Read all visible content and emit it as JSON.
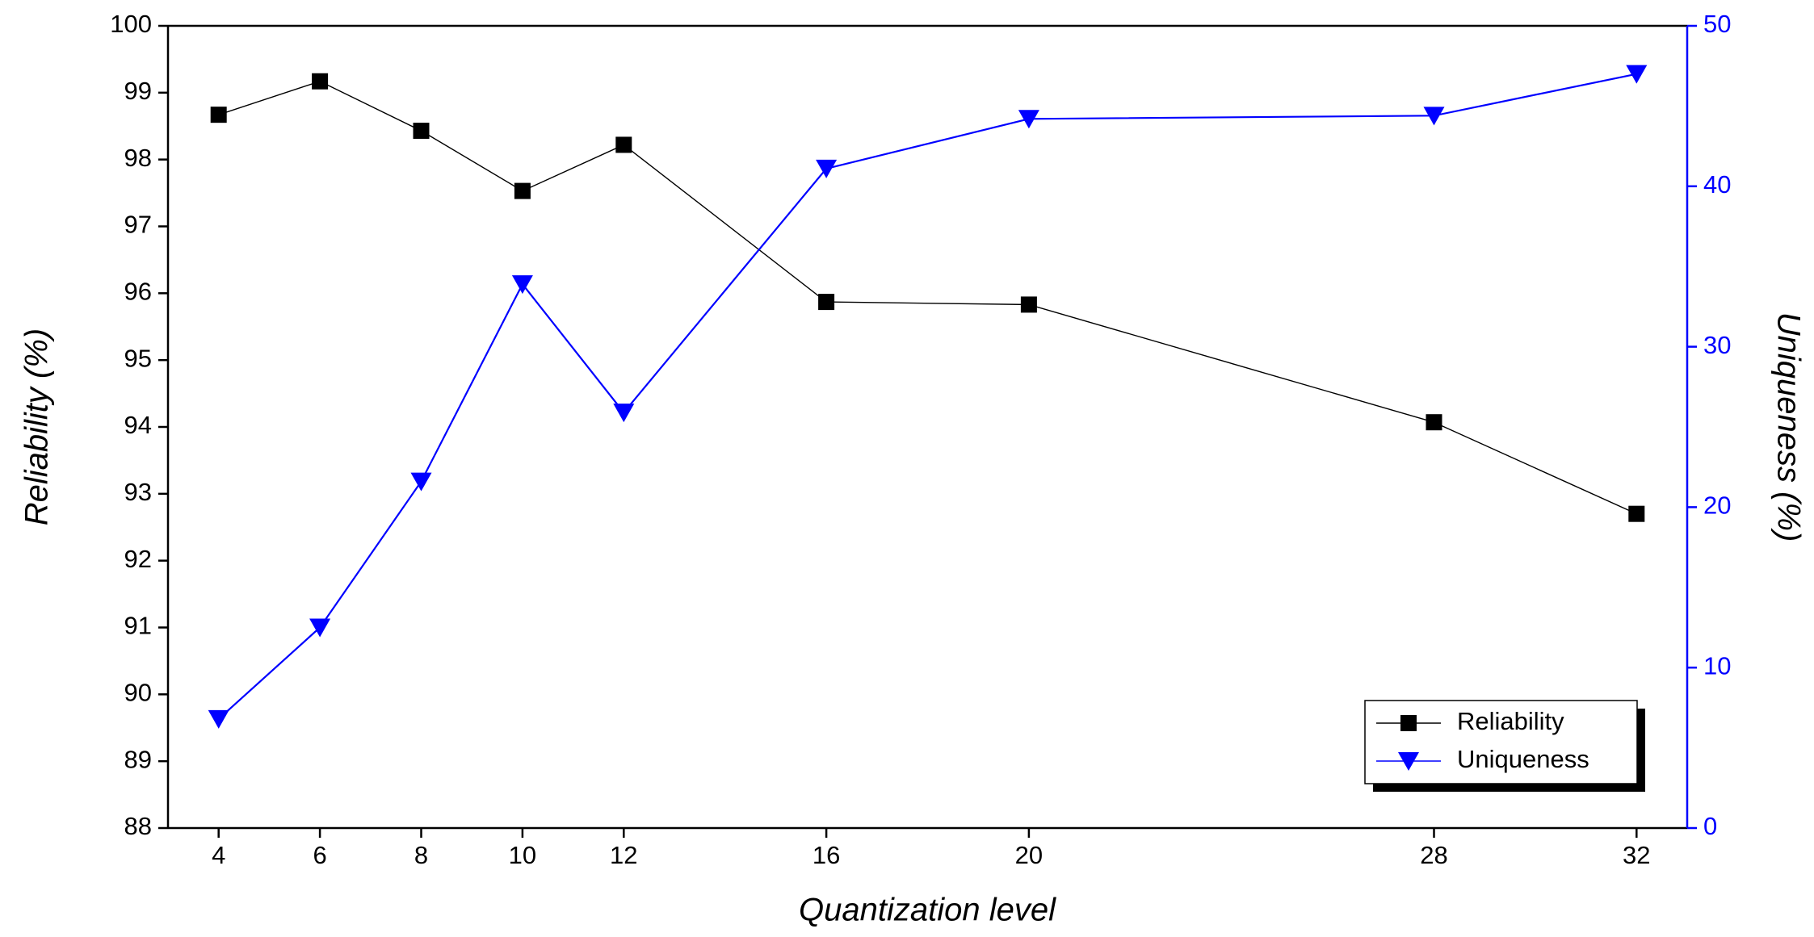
{
  "chart_data": {
    "type": "line",
    "x_label": "Quantization level",
    "y_label": "Reliability (%)",
    "y2_label": "Uniqueness (%)",
    "x": [
      4,
      6,
      8,
      10,
      12,
      16,
      20,
      28,
      32
    ],
    "series": [
      {
        "name": "Reliability",
        "color": "#000000",
        "marker": "square",
        "values": [
          98.67,
          99.17,
          98.43,
          97.53,
          98.22,
          95.87,
          95.83,
          94.07,
          92.7
        ]
      },
      {
        "name": "Uniqueness",
        "color": "#0000ff",
        "marker": "triangle-down",
        "axis": "y2",
        "values": [
          6.8,
          12.5,
          21.6,
          33.9,
          25.9,
          41.1,
          44.2,
          44.4,
          47.0
        ]
      }
    ],
    "xlim": [
      3,
      33
    ],
    "xticks": [
      4,
      6,
      8,
      10,
      12,
      16,
      20,
      28,
      32
    ],
    "ylim": [
      88,
      100
    ],
    "yticks": [
      88,
      89,
      90,
      91,
      92,
      93,
      94,
      95,
      96,
      97,
      98,
      99,
      100
    ],
    "y2lim": [
      0,
      50
    ],
    "y2ticks": [
      0,
      10,
      20,
      30,
      40,
      50
    ],
    "legend": "lower right",
    "grid": false
  }
}
